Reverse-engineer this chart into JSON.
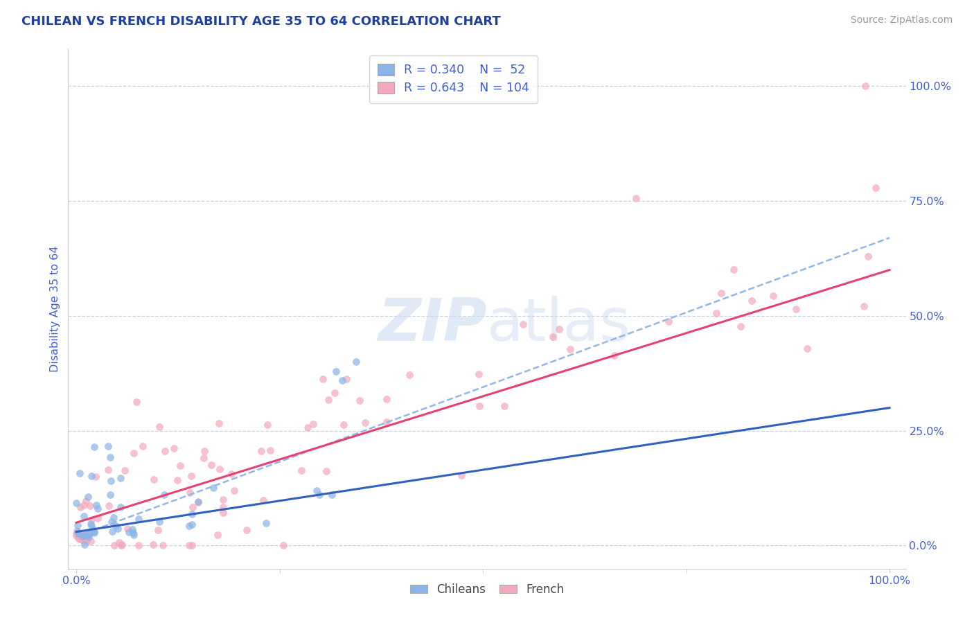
{
  "title": "CHILEAN VS FRENCH DISABILITY AGE 35 TO 64 CORRELATION CHART",
  "source_text": "Source: ZipAtlas.com",
  "ylabel": "Disability Age 35 to 64",
  "legend_r": [
    "0.340",
    "0.643"
  ],
  "legend_n": [
    "52",
    "104"
  ],
  "blue_scatter_color": "#8ab4e8",
  "pink_scatter_color": "#f4a8bc",
  "blue_line_color": "#3060c0",
  "pink_line_color": "#e84070",
  "dash_line_color": "#90b8e8",
  "title_color": "#2040a0",
  "tick_color": "#4060d0",
  "ylabel_color": "#4060d0",
  "source_color": "#999999",
  "watermark_color": "#c8d8f0",
  "background_color": "#ffffff",
  "grid_color": "#c8d0e8",
  "bottom_legend_color": "#444444",
  "scatter_size": 50,
  "scatter_alpha": 0.7,
  "scatter_lw": 0.5
}
